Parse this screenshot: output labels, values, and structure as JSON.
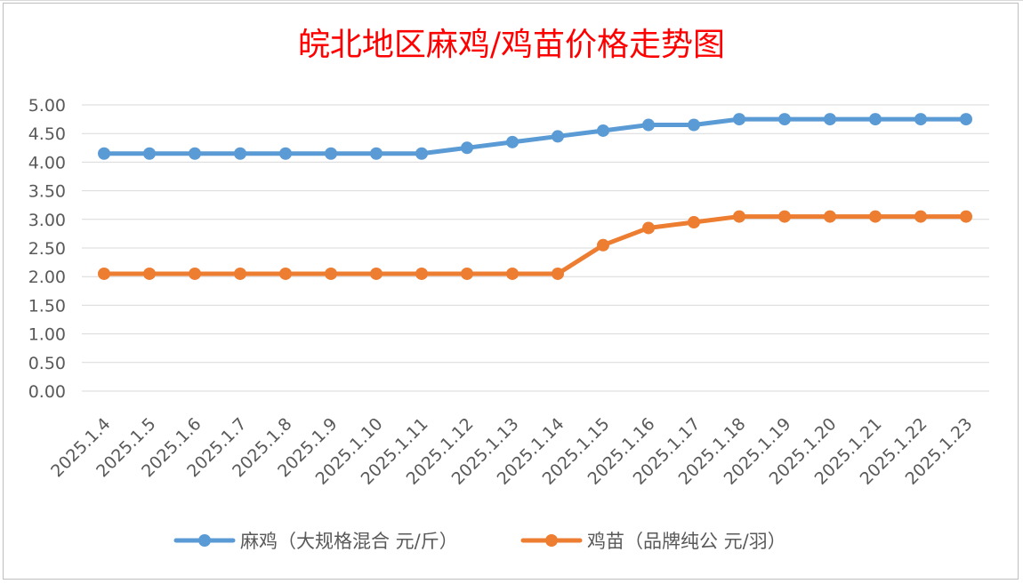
{
  "chart_data": {
    "type": "line",
    "title": "皖北地区麻鸡/鸡苗价格走势图",
    "xlabel": "",
    "ylabel": "",
    "ylim": [
      0,
      5
    ],
    "yticks": [
      "0.00",
      "0.50",
      "1.00",
      "1.50",
      "2.00",
      "2.50",
      "3.00",
      "3.50",
      "4.00",
      "4.50",
      "5.00"
    ],
    "grid": true,
    "legend_position": "bottom",
    "categories": [
      "2025.1.4",
      "2025.1.5",
      "2025.1.6",
      "2025.1.7",
      "2025.1.8",
      "2025.1.9",
      "2025.1.10",
      "2025.1.11",
      "2025.1.12",
      "2025.1.13",
      "2025.1.14",
      "2025.1.15",
      "2025.1.16",
      "2025.1.17",
      "2025.1.18",
      "2025.1.19",
      "2025.1.20",
      "2025.1.21",
      "2025.1.22",
      "2025.1.23"
    ],
    "series": [
      {
        "name": "麻鸡（大规格混合 元/斤）",
        "color": "#5b9bd5",
        "values": [
          4.15,
          4.15,
          4.15,
          4.15,
          4.15,
          4.15,
          4.15,
          4.15,
          4.25,
          4.35,
          4.45,
          4.55,
          4.65,
          4.65,
          4.75,
          4.75,
          4.75,
          4.75,
          4.75,
          4.75
        ]
      },
      {
        "name": "鸡苗（品牌纯公 元/羽）",
        "color": "#ed7d31",
        "values": [
          2.05,
          2.05,
          2.05,
          2.05,
          2.05,
          2.05,
          2.05,
          2.05,
          2.05,
          2.05,
          2.05,
          2.55,
          2.85,
          2.95,
          3.05,
          3.05,
          3.05,
          3.05,
          3.05,
          3.05
        ]
      }
    ]
  }
}
